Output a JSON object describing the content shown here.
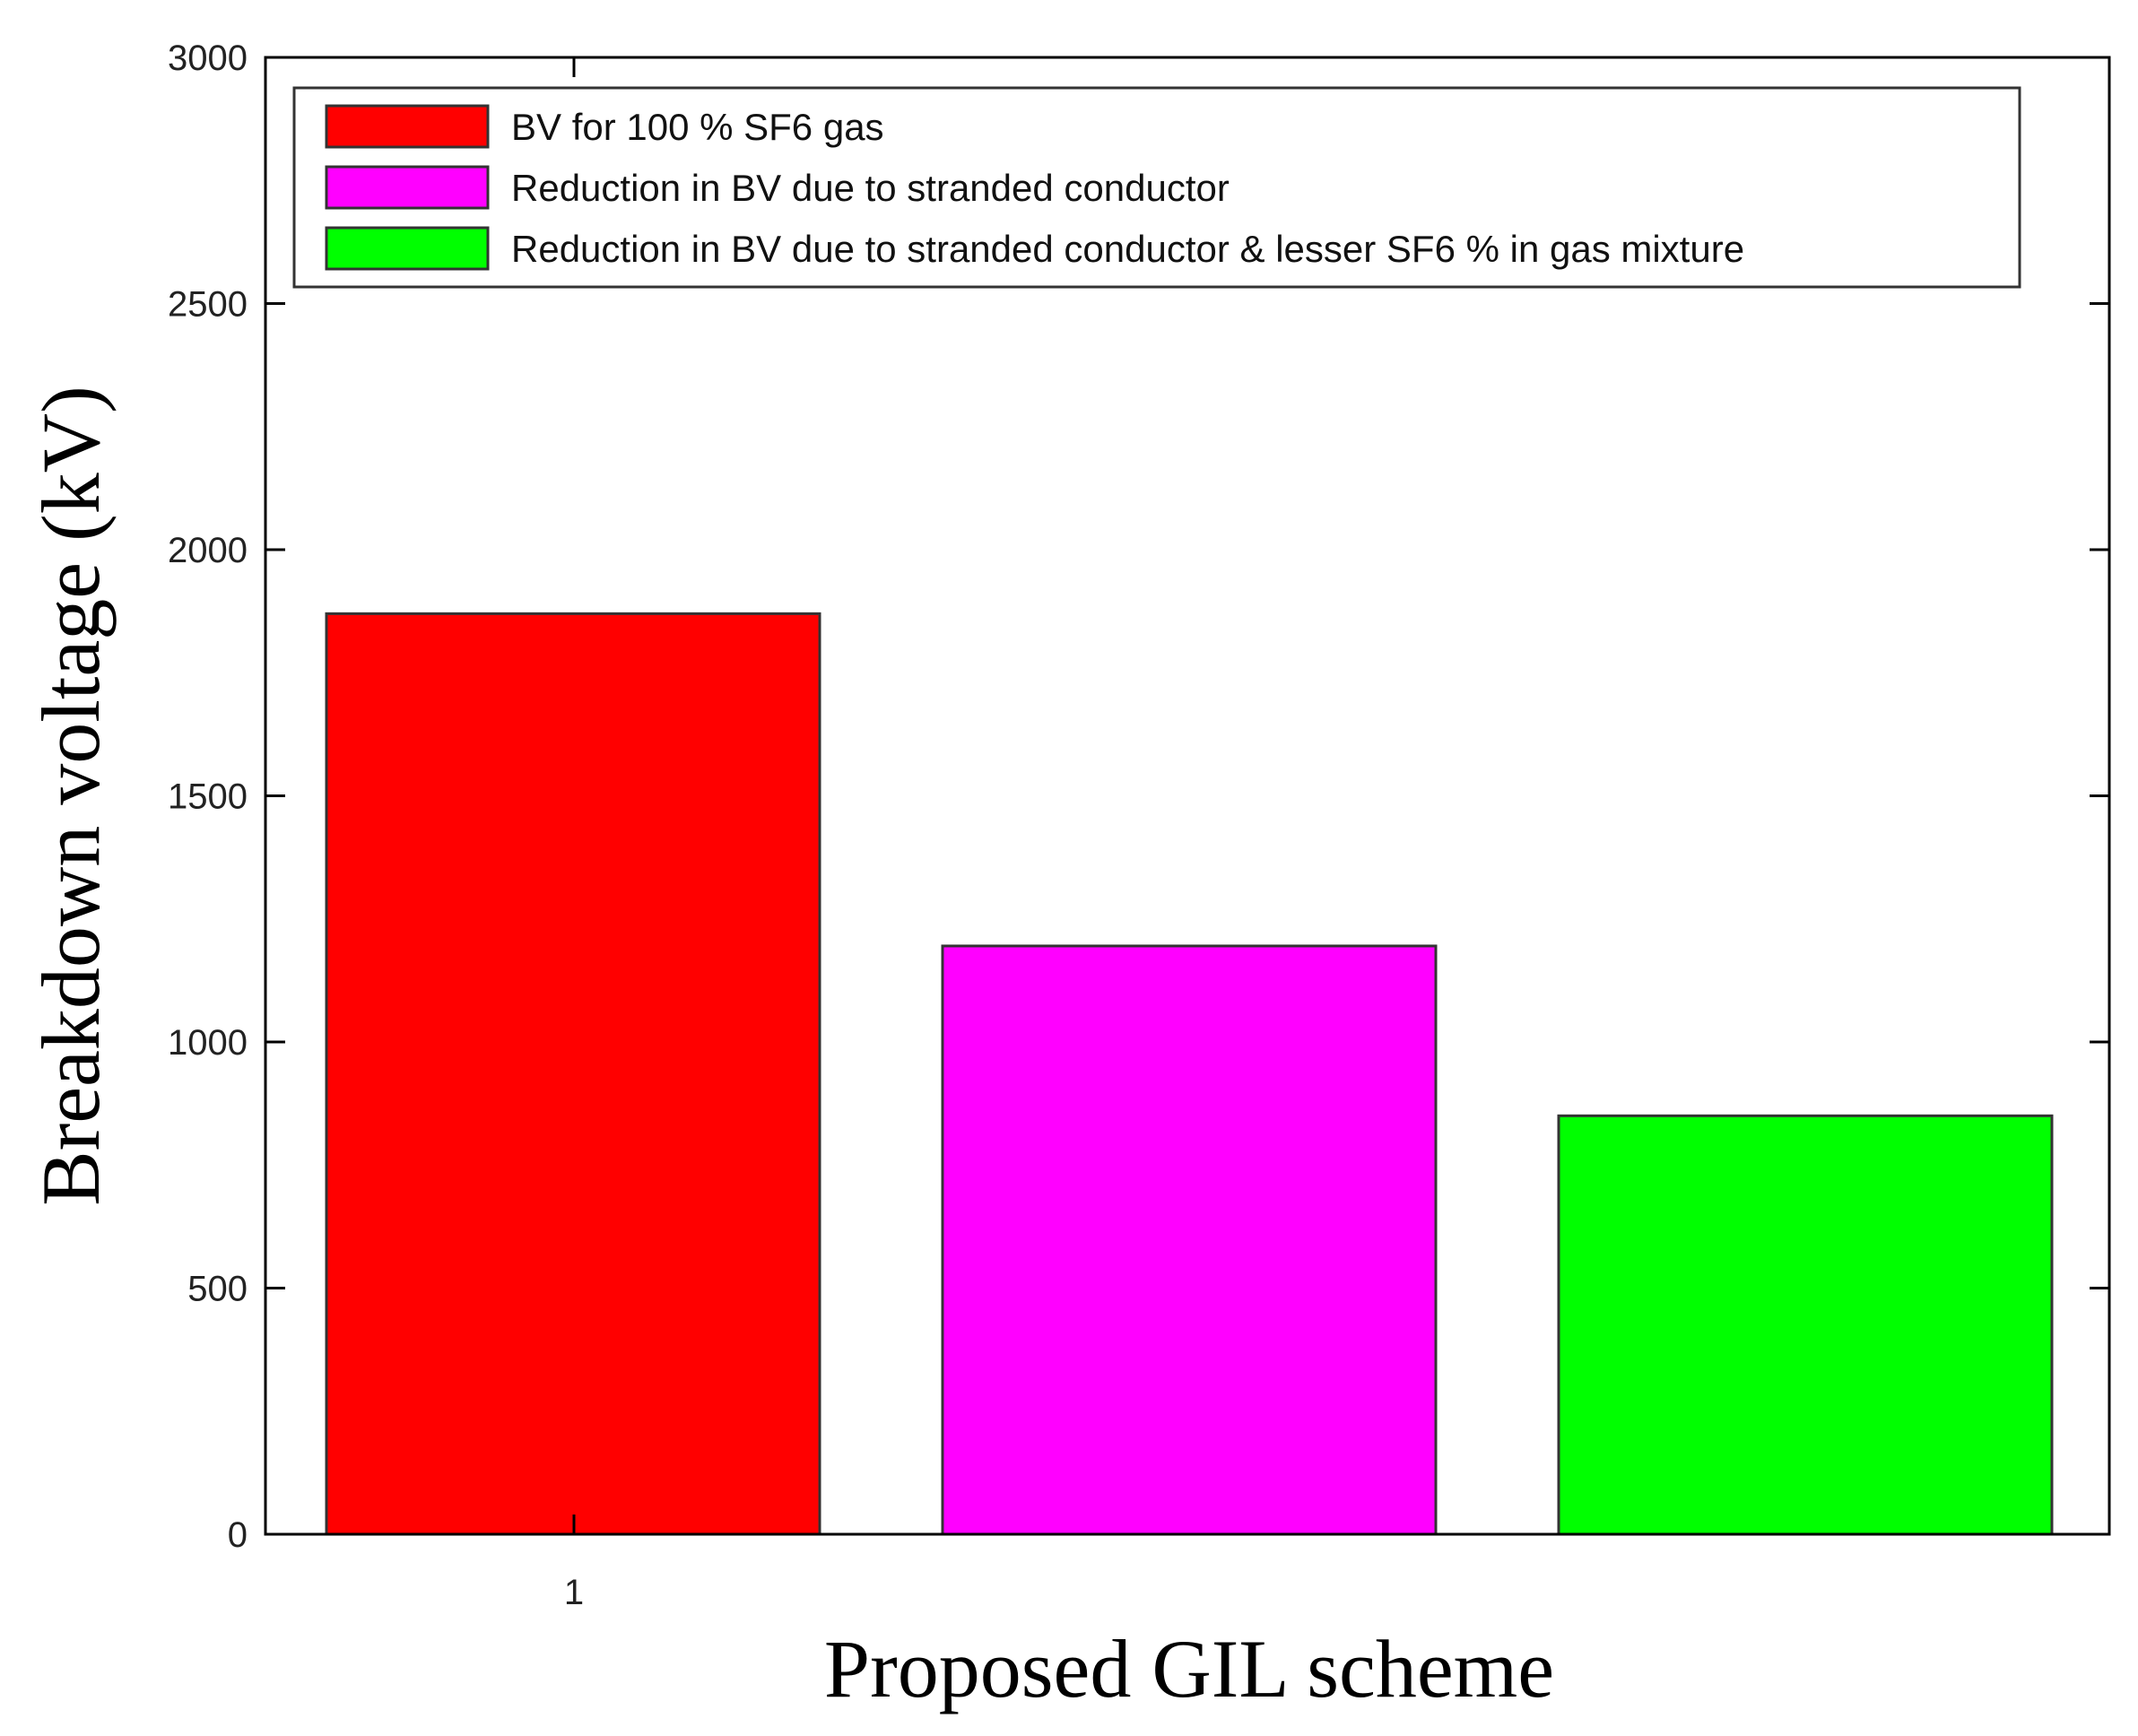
{
  "chart_data": {
    "type": "bar",
    "categories": [
      "1"
    ],
    "series": [
      {
        "name": "BV for 100 % SF6 gas",
        "values": [
          1870
        ],
        "color": "#ff0000"
      },
      {
        "name": "Reduction in BV due to stranded conductor",
        "values": [
          1195
        ],
        "color": "#ff00ff"
      },
      {
        "name": "Reduction in BV due to stranded conductor & lesser SF6 % in gas mixture",
        "values": [
          850
        ],
        "color": "#00ff00"
      }
    ],
    "xlabel": "Proposed GIL scheme",
    "ylabel": "Breakdown voltage (kV)",
    "ylim": [
      0,
      3000
    ],
    "yticks": [
      0,
      500,
      1000,
      1500,
      2000,
      2500,
      3000
    ],
    "xticks": [
      "1"
    ],
    "grid": false,
    "legend_position": "top"
  }
}
